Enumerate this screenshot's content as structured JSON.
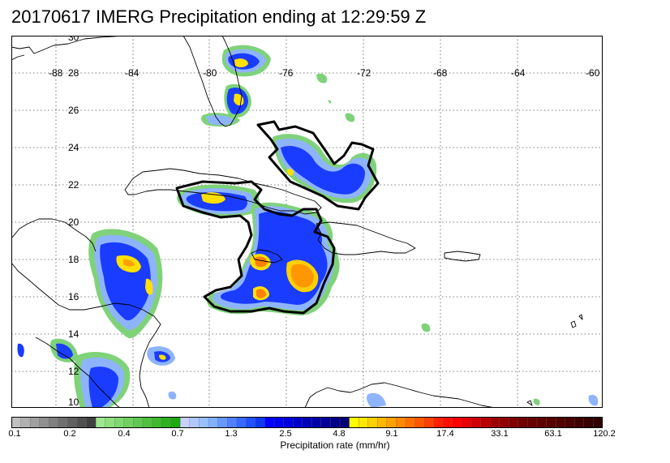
{
  "title": "20170617 IMERG Precipitation ending at 12:29:59 Z",
  "map": {
    "lat_labels": [
      "30",
      "28",
      "26",
      "24",
      "22",
      "20",
      "18",
      "16",
      "14",
      "12",
      "10"
    ],
    "lon_labels": [
      "-88",
      "-84",
      "-80",
      "-76",
      "-72",
      "-68",
      "-64",
      "-60"
    ],
    "lon_range": [
      -89,
      -60
    ],
    "lat_range": [
      10,
      30
    ]
  },
  "colorbar": {
    "title": "Precipitation rate (mm/hr)",
    "tick_labels": [
      "0.1",
      "0.2",
      "0.4",
      "0.7",
      "1.3",
      "2.5",
      "4.8",
      "9.1",
      "17.4",
      "33.1",
      "63.1",
      "120.2"
    ],
    "colors": [
      "#c0c0c0",
      "#b0b0b0",
      "#a0a0a0",
      "#909090",
      "#808080",
      "#707070",
      "#606060",
      "#505050",
      "#404040",
      "#a0e890",
      "#90e080",
      "#80d870",
      "#70d060",
      "#60c850",
      "#50c040",
      "#40b830",
      "#30b020",
      "#20a810",
      "#c8d0ff",
      "#b0c8ff",
      "#98c0ff",
      "#80b0ff",
      "#6898ff",
      "#5080ff",
      "#3868ff",
      "#2050ff",
      "#1038f0",
      "#0000ff",
      "#0000ee",
      "#0000dd",
      "#0000cc",
      "#0000bb",
      "#0000aa",
      "#000099",
      "#000088",
      "#000077",
      "#ffff00",
      "#ffe800",
      "#ffd000",
      "#ffb800",
      "#ffa000",
      "#ff8800",
      "#ff7000",
      "#ff5800",
      "#ff4000",
      "#ff2000",
      "#ff1000",
      "#ff0000",
      "#e80000",
      "#d00000",
      "#b80000",
      "#a00000",
      "#900000",
      "#800000",
      "#700000",
      "#680000",
      "#600000",
      "#580000",
      "#500000",
      "#480000",
      "#400000",
      "#380000",
      "#300000"
    ]
  }
}
